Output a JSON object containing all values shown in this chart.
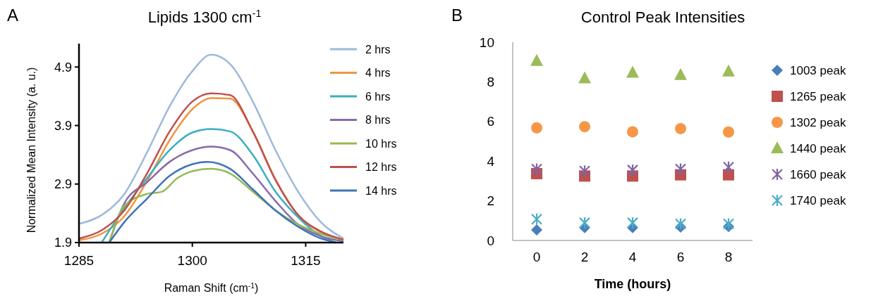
{
  "chart_data": [
    {
      "type": "line",
      "title": "Lipids 1300 cm$^{-1}$",
      "xlabel": "Raman Shift (cm$^{-1}$)",
      "ylabel": "Normalized Mean Intensity (a. u.)",
      "annotations": [
        "A"
      ],
      "xlim": [
        1285,
        1320
      ],
      "ylim": [
        1.9,
        5.3
      ],
      "xticks": [
        1285,
        1300,
        1315
      ],
      "yticks": [
        1.9,
        2.9,
        3.9,
        4.9
      ],
      "grid": false,
      "legend": "right",
      "marker": "none",
      "line_style": "solid",
      "series": [
        {
          "name": "2 hrs",
          "color": "#9db9dc",
          "x": [
            1285,
            1288,
            1291,
            1294,
            1297,
            1300,
            1302.5,
            1305,
            1308,
            1311,
            1314,
            1317,
            1320
          ],
          "values": [
            2.22,
            2.37,
            2.73,
            3.44,
            4.23,
            4.83,
            5.11,
            4.95,
            4.31,
            3.48,
            2.77,
            2.25,
            1.97
          ]
        },
        {
          "name": "4 hrs",
          "color": "#f0943e",
          "x": [
            1285,
            1288,
            1291,
            1294,
            1297,
            1300,
            1302.5,
            1305,
            1308,
            1311,
            1314,
            1317,
            1320
          ],
          "values": [
            1.94,
            2.05,
            2.35,
            2.95,
            3.65,
            4.18,
            4.37,
            4.36,
            3.8,
            2.98,
            2.37,
            2.08,
            1.95
          ]
        },
        {
          "name": "6 hrs",
          "color": "#3aaec0",
          "x": [
            1288,
            1291,
            1294,
            1297,
            1300,
            1302.5,
            1305,
            1308,
            1311,
            1314,
            1317,
            1319
          ],
          "values": [
            1.9,
            2.49,
            3.0,
            3.48,
            3.78,
            3.84,
            3.8,
            3.4,
            2.77,
            2.33,
            2.01,
            1.9
          ]
        },
        {
          "name": "8 hrs",
          "color": "#8a69ac",
          "x": [
            1289,
            1291,
            1294,
            1297,
            1300,
            1302.5,
            1305,
            1308,
            1311,
            1314,
            1317,
            1320
          ],
          "values": [
            1.9,
            2.57,
            2.93,
            3.28,
            3.48,
            3.54,
            3.48,
            3.08,
            2.61,
            2.21,
            2.01,
            1.92
          ]
        },
        {
          "name": "10 hrs",
          "color": "#93bb52",
          "x": [
            1289,
            1291,
            1294,
            1296,
            1298,
            1300,
            1302.5,
            1305,
            1308,
            1311,
            1314,
            1317,
            1320
          ],
          "values": [
            1.9,
            2.53,
            2.73,
            2.77,
            3.0,
            3.12,
            3.16,
            3.08,
            2.77,
            2.45,
            2.21,
            2.05,
            1.94
          ]
        },
        {
          "name": "12 hrs",
          "color": "#c0504d",
          "x": [
            1285,
            1288,
            1291,
            1294,
            1297,
            1300,
            1302.5,
            1305,
            1308,
            1311,
            1314,
            1317,
            1320
          ],
          "values": [
            1.97,
            2.11,
            2.45,
            3.08,
            3.8,
            4.31,
            4.45,
            4.42,
            3.8,
            2.97,
            2.37,
            2.09,
            1.95
          ]
        },
        {
          "name": "14 hrs",
          "color": "#3f74b4",
          "x": [
            1289,
            1291,
            1294,
            1297,
            1300,
            1302,
            1305,
            1308,
            1311,
            1314,
            1317,
            1319
          ],
          "values": [
            1.9,
            2.25,
            2.65,
            3.04,
            3.24,
            3.28,
            3.16,
            2.81,
            2.45,
            2.17,
            1.97,
            1.9
          ]
        }
      ]
    },
    {
      "type": "scatter",
      "title": "Control Peak Intensities",
      "xlabel": "Time (hours)",
      "annotations": [
        "B"
      ],
      "categories": [
        "0",
        "2",
        "4",
        "6",
        "8"
      ],
      "ylim": [
        0,
        10
      ],
      "yticks": [
        0,
        2,
        4,
        6,
        8,
        10
      ],
      "grid": false,
      "legend": "right",
      "series": [
        {
          "name": "1003 peak",
          "color": "#4a7ebb",
          "marker": "diamond",
          "values": [
            0.53,
            0.65,
            0.65,
            0.67,
            0.7
          ]
        },
        {
          "name": "1265 peak",
          "color": "#c0504d",
          "marker": "square",
          "values": [
            3.37,
            3.25,
            3.25,
            3.31,
            3.31
          ]
        },
        {
          "name": "1302 peak",
          "color": "#f79646",
          "marker": "circle",
          "values": [
            5.68,
            5.74,
            5.48,
            5.64,
            5.47
          ]
        },
        {
          "name": "1440 peak",
          "color": "#9bbb59",
          "marker": "triangle",
          "values": [
            9.05,
            8.17,
            8.46,
            8.34,
            8.52
          ]
        },
        {
          "name": "1660 peak",
          "color": "#8064a2",
          "marker": "cross",
          "values": [
            3.6,
            3.5,
            3.55,
            3.6,
            3.7
          ]
        },
        {
          "name": "1740 peak",
          "color": "#4bacc6",
          "marker": "cross",
          "values": [
            1.07,
            0.89,
            0.89,
            0.83,
            0.83
          ]
        }
      ]
    }
  ]
}
